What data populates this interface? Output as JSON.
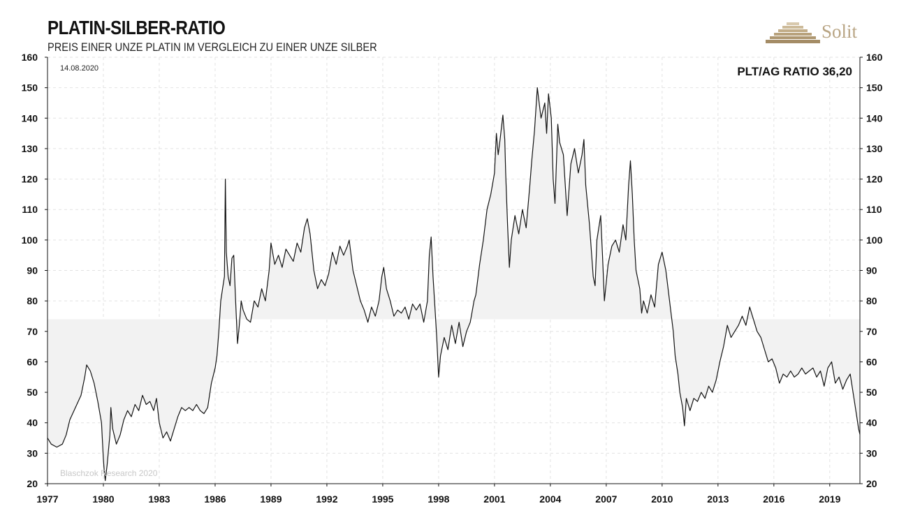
{
  "header": {
    "title": "PLATIN-SILBER-RATIO",
    "subtitle": "PREIS EINER UNZE PLATIN IM VERGLEICH ZU EINER UNZE SILBER"
  },
  "logo": {
    "text": "Solit",
    "color": "#b8a483"
  },
  "annotations": {
    "date": "14.08.2020",
    "current_ratio": "PLT/AG RATIO 36,20",
    "credit": "Blaschzok Research 2020"
  },
  "colors": {
    "line": "#111111",
    "band": "#f2f2f2",
    "grid": "#e2e2e2"
  },
  "chart_data": {
    "type": "line",
    "title": "PLATIN-SILBER-RATIO",
    "xlabel": "",
    "ylabel": "",
    "xlim": [
      1977.0,
      2020.62
    ],
    "ylim": [
      20,
      160
    ],
    "yticks": [
      20,
      30,
      40,
      50,
      60,
      70,
      80,
      90,
      100,
      110,
      120,
      130,
      140,
      150,
      160
    ],
    "xticks": [
      1977,
      1980,
      1983,
      1986,
      1989,
      1992,
      1995,
      1998,
      2001,
      2004,
      2007,
      2010,
      2013,
      2016,
      2019
    ],
    "grid": true,
    "reference_band": {
      "label": "",
      "value": 74
    },
    "series": [
      {
        "values": [
          [
            1977.0,
            35
          ],
          [
            1977.2,
            33
          ],
          [
            1977.5,
            32
          ],
          [
            1977.8,
            33
          ],
          [
            1978.0,
            36
          ],
          [
            1978.2,
            41
          ],
          [
            1978.5,
            45
          ],
          [
            1978.8,
            49
          ],
          [
            1979.0,
            55
          ],
          [
            1979.1,
            59
          ],
          [
            1979.3,
            57
          ],
          [
            1979.5,
            53
          ],
          [
            1979.7,
            47
          ],
          [
            1979.9,
            40
          ],
          [
            1980.0,
            28
          ],
          [
            1980.05,
            24
          ],
          [
            1980.1,
            21
          ],
          [
            1980.2,
            26
          ],
          [
            1980.35,
            36
          ],
          [
            1980.4,
            45
          ],
          [
            1980.5,
            38
          ],
          [
            1980.7,
            33
          ],
          [
            1980.9,
            36
          ],
          [
            1981.1,
            41
          ],
          [
            1981.3,
            44
          ],
          [
            1981.5,
            42
          ],
          [
            1981.7,
            46
          ],
          [
            1981.9,
            44
          ],
          [
            1982.1,
            49
          ],
          [
            1982.3,
            46
          ],
          [
            1982.5,
            47
          ],
          [
            1982.7,
            44
          ],
          [
            1982.85,
            48
          ],
          [
            1983.0,
            40
          ],
          [
            1983.2,
            35
          ],
          [
            1983.4,
            37
          ],
          [
            1983.6,
            34
          ],
          [
            1983.8,
            38
          ],
          [
            1984.0,
            42
          ],
          [
            1984.2,
            45
          ],
          [
            1984.4,
            44
          ],
          [
            1984.6,
            45
          ],
          [
            1984.8,
            44
          ],
          [
            1985.0,
            46
          ],
          [
            1985.2,
            44
          ],
          [
            1985.4,
            43
          ],
          [
            1985.6,
            45
          ],
          [
            1985.8,
            53
          ],
          [
            1986.0,
            58
          ],
          [
            1986.1,
            62
          ],
          [
            1986.2,
            70
          ],
          [
            1986.3,
            80
          ],
          [
            1986.4,
            84
          ],
          [
            1986.5,
            88
          ],
          [
            1986.55,
            120
          ],
          [
            1986.6,
            96
          ],
          [
            1986.7,
            88
          ],
          [
            1986.8,
            85
          ],
          [
            1986.9,
            94
          ],
          [
            1987.0,
            95
          ],
          [
            1987.1,
            80
          ],
          [
            1987.2,
            66
          ],
          [
            1987.3,
            72
          ],
          [
            1987.4,
            80
          ],
          [
            1987.5,
            77
          ],
          [
            1987.7,
            74
          ],
          [
            1987.9,
            73
          ],
          [
            1988.1,
            80
          ],
          [
            1988.3,
            78
          ],
          [
            1988.5,
            84
          ],
          [
            1988.7,
            80
          ],
          [
            1988.9,
            90
          ],
          [
            1989.0,
            99
          ],
          [
            1989.2,
            92
          ],
          [
            1989.4,
            95
          ],
          [
            1989.6,
            91
          ],
          [
            1989.8,
            97
          ],
          [
            1990.0,
            95
          ],
          [
            1990.2,
            93
          ],
          [
            1990.4,
            99
          ],
          [
            1990.6,
            96
          ],
          [
            1990.8,
            104
          ],
          [
            1990.95,
            107
          ],
          [
            1991.1,
            102
          ],
          [
            1991.3,
            90
          ],
          [
            1991.5,
            84
          ],
          [
            1991.7,
            87
          ],
          [
            1991.9,
            85
          ],
          [
            1992.1,
            89
          ],
          [
            1992.3,
            96
          ],
          [
            1992.5,
            92
          ],
          [
            1992.7,
            98
          ],
          [
            1992.9,
            95
          ],
          [
            1993.1,
            98
          ],
          [
            1993.2,
            100
          ],
          [
            1993.4,
            90
          ],
          [
            1993.6,
            85
          ],
          [
            1993.8,
            80
          ],
          [
            1994.0,
            77
          ],
          [
            1994.2,
            73
          ],
          [
            1994.4,
            78
          ],
          [
            1994.6,
            75
          ],
          [
            1994.8,
            80
          ],
          [
            1994.95,
            88
          ],
          [
            1995.05,
            91
          ],
          [
            1995.2,
            84
          ],
          [
            1995.4,
            80
          ],
          [
            1995.6,
            75
          ],
          [
            1995.8,
            77
          ],
          [
            1996.0,
            76
          ],
          [
            1996.2,
            78
          ],
          [
            1996.4,
            74
          ],
          [
            1996.6,
            79
          ],
          [
            1996.8,
            77
          ],
          [
            1997.0,
            79
          ],
          [
            1997.2,
            73
          ],
          [
            1997.4,
            80
          ],
          [
            1997.5,
            95
          ],
          [
            1997.6,
            101
          ],
          [
            1997.7,
            88
          ],
          [
            1997.8,
            78
          ],
          [
            1997.9,
            68
          ],
          [
            1998.0,
            55
          ],
          [
            1998.1,
            62
          ],
          [
            1998.3,
            68
          ],
          [
            1998.5,
            64
          ],
          [
            1998.7,
            72
          ],
          [
            1998.9,
            66
          ],
          [
            1999.1,
            73
          ],
          [
            1999.3,
            65
          ],
          [
            1999.5,
            70
          ],
          [
            1999.7,
            73
          ],
          [
            1999.9,
            80
          ],
          [
            2000.0,
            82
          ],
          [
            2000.2,
            92
          ],
          [
            2000.4,
            100
          ],
          [
            2000.6,
            110
          ],
          [
            2000.8,
            115
          ],
          [
            2001.0,
            122
          ],
          [
            2001.1,
            135
          ],
          [
            2001.2,
            128
          ],
          [
            2001.3,
            133
          ],
          [
            2001.45,
            141
          ],
          [
            2001.55,
            133
          ],
          [
            2001.6,
            122
          ],
          [
            2001.7,
            105
          ],
          [
            2001.8,
            91
          ],
          [
            2001.9,
            100
          ],
          [
            2002.1,
            108
          ],
          [
            2002.3,
            102
          ],
          [
            2002.5,
            110
          ],
          [
            2002.7,
            104
          ],
          [
            2002.9,
            118
          ],
          [
            2003.0,
            126
          ],
          [
            2003.15,
            136
          ],
          [
            2003.3,
            150
          ],
          [
            2003.5,
            140
          ],
          [
            2003.7,
            145
          ],
          [
            2003.8,
            135
          ],
          [
            2003.9,
            148
          ],
          [
            2004.05,
            140
          ],
          [
            2004.15,
            120
          ],
          [
            2004.25,
            112
          ],
          [
            2004.4,
            138
          ],
          [
            2004.5,
            132
          ],
          [
            2004.7,
            128
          ],
          [
            2004.9,
            108
          ],
          [
            2005.1,
            125
          ],
          [
            2005.3,
            130
          ],
          [
            2005.5,
            122
          ],
          [
            2005.7,
            128
          ],
          [
            2005.8,
            133
          ],
          [
            2005.9,
            118
          ],
          [
            2006.1,
            105
          ],
          [
            2006.3,
            88
          ],
          [
            2006.4,
            85
          ],
          [
            2006.5,
            100
          ],
          [
            2006.7,
            108
          ],
          [
            2006.8,
            95
          ],
          [
            2006.9,
            80
          ],
          [
            2007.1,
            92
          ],
          [
            2007.3,
            98
          ],
          [
            2007.5,
            100
          ],
          [
            2007.7,
            96
          ],
          [
            2007.9,
            105
          ],
          [
            2008.05,
            100
          ],
          [
            2008.2,
            118
          ],
          [
            2008.3,
            126
          ],
          [
            2008.4,
            115
          ],
          [
            2008.5,
            100
          ],
          [
            2008.6,
            90
          ],
          [
            2008.8,
            84
          ],
          [
            2008.9,
            76
          ],
          [
            2009.0,
            80
          ],
          [
            2009.2,
            76
          ],
          [
            2009.4,
            82
          ],
          [
            2009.6,
            78
          ],
          [
            2009.8,
            92
          ],
          [
            2010.0,
            96
          ],
          [
            2010.2,
            90
          ],
          [
            2010.4,
            80
          ],
          [
            2010.6,
            70
          ],
          [
            2010.7,
            62
          ],
          [
            2010.85,
            56
          ],
          [
            2010.95,
            50
          ],
          [
            2011.1,
            45
          ],
          [
            2011.2,
            39
          ],
          [
            2011.3,
            48
          ],
          [
            2011.5,
            44
          ],
          [
            2011.7,
            48
          ],
          [
            2011.9,
            47
          ],
          [
            2012.1,
            50
          ],
          [
            2012.3,
            48
          ],
          [
            2012.5,
            52
          ],
          [
            2012.7,
            50
          ],
          [
            2012.9,
            54
          ],
          [
            2013.1,
            60
          ],
          [
            2013.3,
            65
          ],
          [
            2013.5,
            72
          ],
          [
            2013.7,
            68
          ],
          [
            2013.9,
            70
          ],
          [
            2014.1,
            72
          ],
          [
            2014.3,
            75
          ],
          [
            2014.5,
            72
          ],
          [
            2014.7,
            78
          ],
          [
            2014.9,
            74
          ],
          [
            2015.1,
            70
          ],
          [
            2015.3,
            68
          ],
          [
            2015.5,
            64
          ],
          [
            2015.7,
            60
          ],
          [
            2015.9,
            61
          ],
          [
            2016.1,
            58
          ],
          [
            2016.3,
            53
          ],
          [
            2016.5,
            56
          ],
          [
            2016.7,
            55
          ],
          [
            2016.9,
            57
          ],
          [
            2017.1,
            55
          ],
          [
            2017.3,
            56
          ],
          [
            2017.5,
            58
          ],
          [
            2017.7,
            56
          ],
          [
            2017.9,
            57
          ],
          [
            2018.1,
            58
          ],
          [
            2018.3,
            55
          ],
          [
            2018.5,
            57
          ],
          [
            2018.7,
            52
          ],
          [
            2018.9,
            58
          ],
          [
            2019.1,
            60
          ],
          [
            2019.3,
            53
          ],
          [
            2019.5,
            55
          ],
          [
            2019.7,
            51
          ],
          [
            2019.9,
            54
          ],
          [
            2020.1,
            56
          ],
          [
            2020.3,
            48
          ],
          [
            2020.45,
            42
          ],
          [
            2020.55,
            38
          ],
          [
            2020.62,
            36.2
          ]
        ]
      }
    ]
  }
}
